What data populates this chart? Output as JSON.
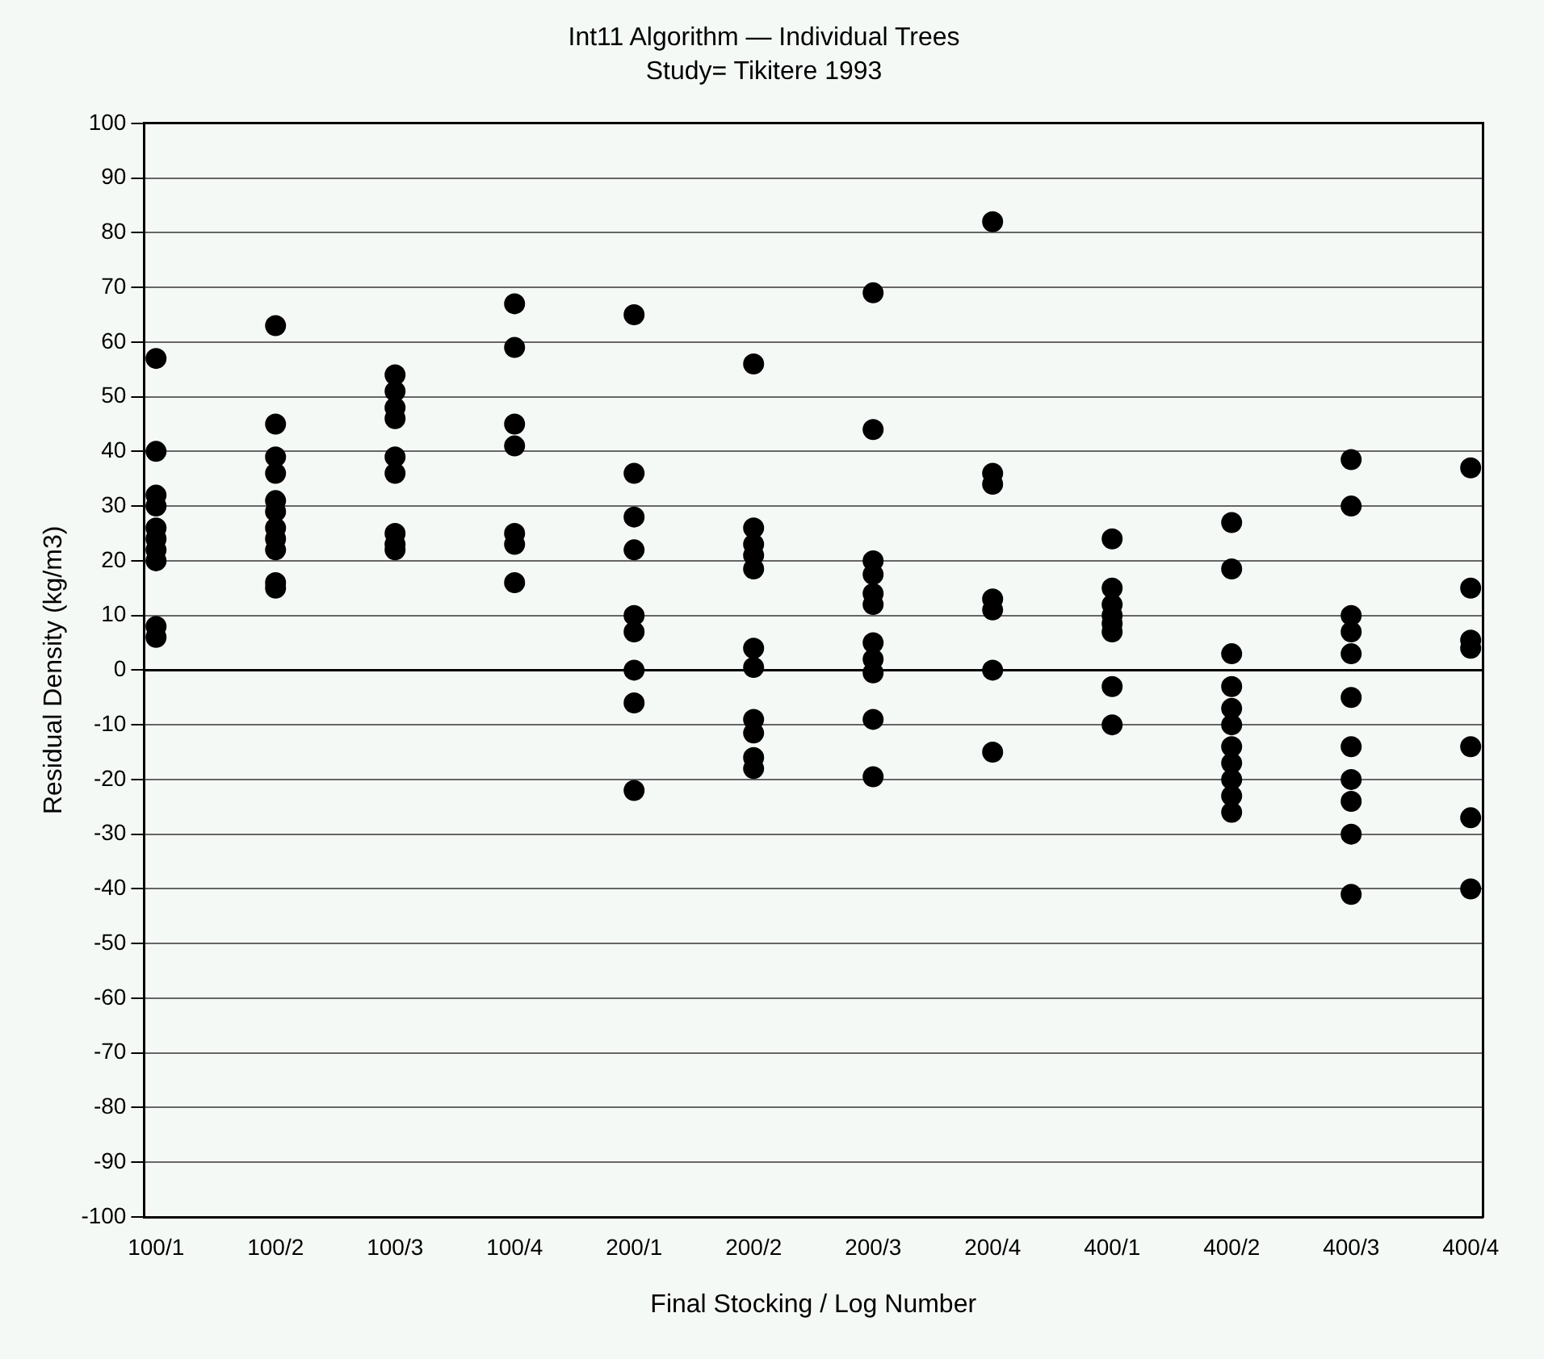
{
  "chart_data": {
    "type": "scatter",
    "title": "Int11 Algorithm — Individual Trees",
    "subtitle": "Study= Tikitere 1993",
    "xlabel": "Final Stocking / Log Number",
    "ylabel": "Residual Density (kg/m3)",
    "categories": [
      "100/1",
      "100/2",
      "100/3",
      "100/4",
      "200/1",
      "200/2",
      "200/3",
      "200/4",
      "400/1",
      "400/2",
      "400/3",
      "400/4"
    ],
    "ylim": [
      -100,
      100
    ],
    "yticks": [
      -100,
      -90,
      -80,
      -70,
      -60,
      -50,
      -40,
      -30,
      -20,
      -10,
      0,
      10,
      20,
      30,
      40,
      50,
      60,
      70,
      80,
      90,
      100
    ],
    "grid": "y",
    "legend": false,
    "marker": "circle",
    "ref_lines": [
      {
        "axis": "y",
        "value": 0,
        "color": "#000000",
        "line_style": "solid"
      }
    ],
    "series": [
      {
        "color": "#000000",
        "x": [
          "100/1",
          "100/1",
          "100/1",
          "100/1",
          "100/1",
          "100/1",
          "100/1",
          "100/1",
          "100/1",
          "100/1",
          "100/2",
          "100/2",
          "100/2",
          "100/2",
          "100/2",
          "100/2",
          "100/2",
          "100/2",
          "100/2",
          "100/2",
          "100/2",
          "100/3",
          "100/3",
          "100/3",
          "100/3",
          "100/3",
          "100/3",
          "100/3",
          "100/3",
          "100/3",
          "100/4",
          "100/4",
          "100/4",
          "100/4",
          "100/4",
          "100/4",
          "100/4",
          "400/1",
          "400/1",
          "400/1",
          "400/1",
          "400/1",
          "400/1",
          "400/1",
          "400/1",
          "400/2",
          "400/2",
          "400/2",
          "400/2",
          "400/2",
          "400/2",
          "400/2",
          "400/2",
          "400/2",
          "400/2",
          "400/2",
          "400/3",
          "400/3",
          "400/3",
          "400/3",
          "400/3",
          "400/3",
          "400/3",
          "400/3",
          "400/3",
          "400/3",
          "400/3",
          "400/4",
          "400/4",
          "400/4",
          "400/4",
          "400/4",
          "400/4",
          "400/4"
        ],
        "values": [
          57,
          40,
          32,
          30,
          26,
          24,
          22,
          20,
          8,
          6,
          63,
          45,
          39,
          36,
          31,
          29,
          26,
          24,
          22,
          16,
          15,
          54,
          51,
          48,
          46,
          39,
          36,
          25,
          23,
          22,
          67,
          59,
          45,
          41,
          25,
          23,
          16,
          24,
          15,
          12,
          10,
          8.5,
          7,
          -3,
          -10,
          27,
          18.5,
          3,
          -3,
          -7,
          -10,
          -14,
          -17,
          -20,
          -23,
          -26,
          38.5,
          30,
          10,
          7,
          3,
          -5,
          -14,
          -20,
          -24,
          -30,
          -41,
          37,
          15,
          5.5,
          4,
          -14,
          -27,
          -40
        ]
      },
      {
        "color": "#000000",
        "x": [
          "200/1",
          "200/1",
          "200/1",
          "200/1",
          "200/1",
          "200/1",
          "200/1",
          "200/1",
          "200/1",
          "200/2",
          "200/2",
          "200/2",
          "200/2",
          "200/2",
          "200/2",
          "200/2",
          "200/2",
          "200/2",
          "200/2",
          "200/2",
          "200/3",
          "200/3",
          "200/3",
          "200/3",
          "200/3",
          "200/3",
          "200/3",
          "200/3",
          "200/3",
          "200/3",
          "200/3",
          "200/4",
          "200/4",
          "200/4",
          "200/4",
          "200/4",
          "200/4",
          "200/4"
        ],
        "values": [
          65,
          36,
          28,
          22,
          10,
          7,
          0,
          -6,
          -22,
          56,
          26,
          23,
          21,
          18.5,
          4,
          0.5,
          -9,
          -11.5,
          -16,
          -18,
          69,
          44,
          20,
          17.5,
          14,
          12,
          5,
          2,
          -0.5,
          -9,
          -19.5,
          82,
          36,
          34,
          13,
          11,
          0,
          -15
        ]
      }
    ]
  }
}
